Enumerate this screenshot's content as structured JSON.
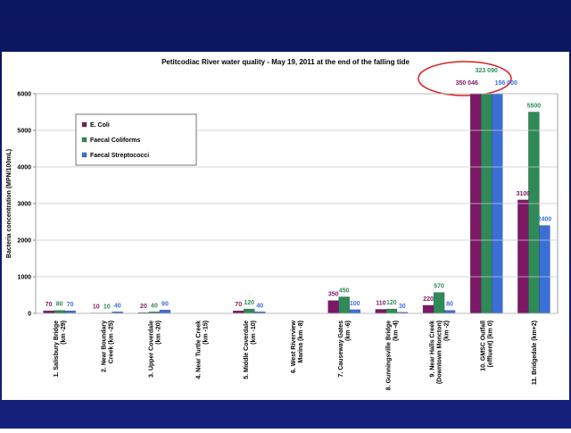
{
  "chart_data": {
    "type": "bar",
    "title": "Petitcodiac River water quality - May 19, 2011 at the end of the falling tide",
    "y_label": "Bacteria concentration (MPN/100mL)",
    "categories": [
      [
        "1. Salisbury Bridge",
        "(km -29)"
      ],
      [
        "2. Near Boundary",
        "Creek (km -25)"
      ],
      [
        "3. Upper Coverdale",
        "(km -20)"
      ],
      [
        "4. Near Turtle Creek",
        "(km -15)"
      ],
      [
        "5. Middle Coverdale",
        "(km -10)"
      ],
      [
        "6. West Riverview",
        "Marina (km -8)"
      ],
      [
        "7. Causeway Gates",
        "(km -6)"
      ],
      [
        "8. Gunningsville Bridge",
        "(km -4)"
      ],
      [
        "9. Near Halls Creek",
        "(Downtown Moncton)",
        "(km -2)"
      ],
      [
        "10. GMSC Outfall",
        "(effluent) (km 0)"
      ],
      [
        "11. Bridgedale (km+2)"
      ]
    ],
    "series": [
      {
        "name": "E. Coli",
        "color": "#7d1866",
        "values": [
          70,
          10,
          20,
          null,
          70,
          null,
          350,
          110,
          220,
          350046,
          3100
        ],
        "value_labels": [
          "70",
          "10",
          "20",
          null,
          "70",
          null,
          "350",
          "110",
          "220",
          "350 046",
          "3100"
        ]
      },
      {
        "name": "Faecal Coliforms",
        "color": "#2e8b57",
        "values": [
          80,
          10,
          40,
          null,
          120,
          null,
          450,
          120,
          570,
          323090,
          5500
        ],
        "value_labels": [
          "80",
          "10",
          "40",
          null,
          "120",
          null,
          "450",
          "120",
          "570",
          "323 090",
          "5500"
        ]
      },
      {
        "name": "Faecal Streptococci",
        "color": "#3a6fd8",
        "values": [
          70,
          40,
          90,
          null,
          40,
          null,
          100,
          30,
          80,
          156000,
          2400
        ],
        "value_labels": [
          "70",
          "40",
          "90",
          null,
          "40",
          null,
          "100",
          "30",
          "80",
          "156 000",
          "2400"
        ]
      }
    ],
    "ylim": [
      0,
      6000
    ],
    "yticks": [
      0,
      1000,
      2000,
      3000,
      4000,
      5000,
      6000
    ],
    "grid": true,
    "legend": "upper left"
  }
}
